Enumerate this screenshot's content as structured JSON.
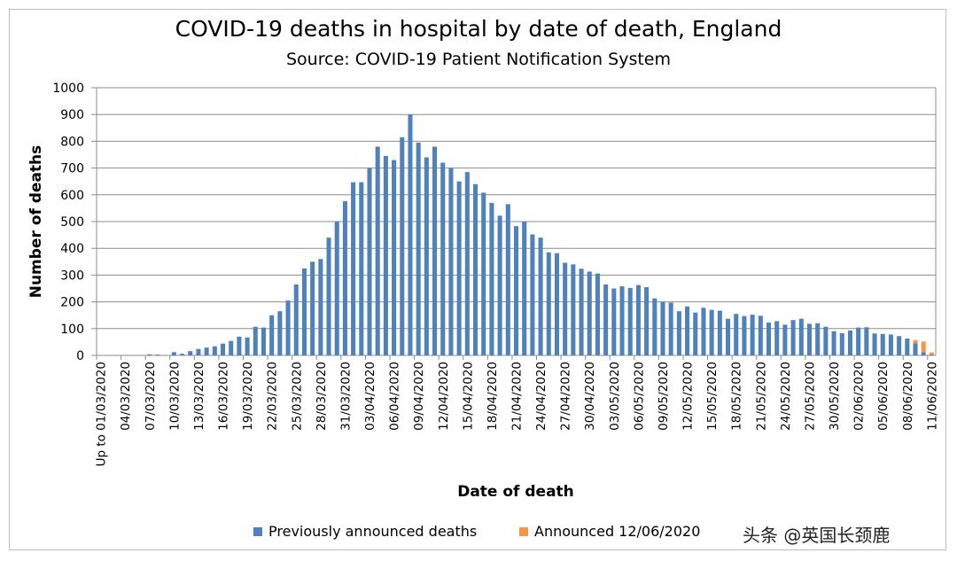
{
  "chart_data": {
    "type": "bar",
    "stacked": true,
    "title": "COVID-19 deaths in hospital by date of death, England",
    "subtitle": "Source: COVID-19 Patient Notification System",
    "xlabel": "Date of death",
    "ylabel": "Number of deaths",
    "ylim": [
      0,
      1000
    ],
    "yticks": [
      0,
      100,
      200,
      300,
      400,
      500,
      600,
      700,
      800,
      900,
      1000
    ],
    "grid": true,
    "legend_position": "bottom",
    "categories": [
      "Up to 01/03/2020",
      "02/03/2020",
      "03/03/2020",
      "04/03/2020",
      "05/03/2020",
      "06/03/2020",
      "07/03/2020",
      "08/03/2020",
      "09/03/2020",
      "10/03/2020",
      "11/03/2020",
      "12/03/2020",
      "13/03/2020",
      "14/03/2020",
      "15/03/2020",
      "16/03/2020",
      "17/03/2020",
      "18/03/2020",
      "19/03/2020",
      "20/03/2020",
      "21/03/2020",
      "22/03/2020",
      "23/03/2020",
      "24/03/2020",
      "25/03/2020",
      "26/03/2020",
      "27/03/2020",
      "28/03/2020",
      "29/03/2020",
      "30/03/2020",
      "31/03/2020",
      "01/04/2020",
      "02/04/2020",
      "03/04/2020",
      "04/04/2020",
      "05/04/2020",
      "06/04/2020",
      "07/04/2020",
      "08/04/2020",
      "09/04/2020",
      "10/04/2020",
      "11/04/2020",
      "12/04/2020",
      "13/04/2020",
      "14/04/2020",
      "15/04/2020",
      "16/04/2020",
      "17/04/2020",
      "18/04/2020",
      "19/04/2020",
      "20/04/2020",
      "21/04/2020",
      "22/04/2020",
      "23/04/2020",
      "24/04/2020",
      "25/04/2020",
      "26/04/2020",
      "27/04/2020",
      "28/04/2020",
      "29/04/2020",
      "30/04/2020",
      "01/05/2020",
      "02/05/2020",
      "03/05/2020",
      "04/05/2020",
      "05/05/2020",
      "06/05/2020",
      "07/05/2020",
      "08/05/2020",
      "09/05/2020",
      "10/05/2020",
      "11/05/2020",
      "12/05/2020",
      "13/05/2020",
      "14/05/2020",
      "15/05/2020",
      "16/05/2020",
      "17/05/2020",
      "18/05/2020",
      "19/05/2020",
      "20/05/2020",
      "21/05/2020",
      "22/05/2020",
      "23/05/2020",
      "24/05/2020",
      "25/05/2020",
      "26/05/2020",
      "27/05/2020",
      "28/05/2020",
      "29/05/2020",
      "30/05/2020",
      "31/05/2020",
      "01/06/2020",
      "02/06/2020",
      "03/06/2020",
      "04/06/2020",
      "05/06/2020",
      "06/06/2020",
      "07/06/2020",
      "08/06/2020",
      "09/06/2020",
      "10/06/2020",
      "11/06/2020"
    ],
    "labeled_ticks": [
      "Up to 01/03/2020",
      "04/03/2020",
      "07/03/2020",
      "10/03/2020",
      "13/03/2020",
      "16/03/2020",
      "19/03/2020",
      "22/03/2020",
      "25/03/2020",
      "28/03/2020",
      "31/03/2020",
      "03/04/2020",
      "06/04/2020",
      "09/04/2020",
      "12/04/2020",
      "15/04/2020",
      "18/04/2020",
      "21/04/2020",
      "24/04/2020",
      "27/04/2020",
      "30/04/2020",
      "03/05/2020",
      "06/05/2020",
      "09/05/2020",
      "12/05/2020",
      "15/05/2020",
      "18/05/2020",
      "21/05/2020",
      "24/05/2020",
      "27/05/2020",
      "30/05/2020",
      "02/06/2020",
      "05/06/2020",
      "08/06/2020",
      "11/06/2020"
    ],
    "series": [
      {
        "name": "Previously announced deaths",
        "color": "#4f81bd",
        "values": [
          0,
          0,
          1,
          1,
          1,
          1,
          4,
          3,
          1,
          12,
          6,
          16,
          24,
          29,
          34,
          44,
          54,
          70,
          67,
          107,
          104,
          150,
          165,
          205,
          265,
          325,
          350,
          360,
          440,
          500,
          576,
          647,
          647,
          700,
          780,
          745,
          730,
          815,
          900,
          795,
          740,
          780,
          720,
          700,
          650,
          685,
          640,
          608,
          570,
          522,
          565,
          483,
          500,
          452,
          440,
          385,
          382,
          346,
          340,
          324,
          313,
          306,
          265,
          250,
          258,
          252,
          263,
          255,
          213,
          200,
          197,
          165,
          183,
          160,
          178,
          170,
          167,
          137,
          155,
          147,
          152,
          148,
          123,
          128,
          115,
          132,
          137,
          118,
          120,
          107,
          90,
          83,
          93,
          104,
          105,
          82,
          80,
          78,
          72,
          63,
          45,
          12,
          3
        ]
      },
      {
        "name": "Announced 12/06/2020",
        "color": "#f79646",
        "values": [
          0,
          0,
          0,
          0,
          0,
          0,
          0,
          0,
          0,
          0,
          0,
          0,
          0,
          0,
          0,
          0,
          0,
          0,
          0,
          0,
          0,
          0,
          0,
          0,
          0,
          0,
          0,
          0,
          0,
          0,
          0,
          0,
          0,
          0,
          0,
          0,
          0,
          0,
          0,
          0,
          0,
          0,
          0,
          0,
          0,
          0,
          0,
          0,
          0,
          0,
          0,
          0,
          0,
          0,
          0,
          0,
          0,
          0,
          0,
          0,
          0,
          0,
          0,
          0,
          0,
          0,
          0,
          0,
          0,
          0,
          0,
          0,
          0,
          0,
          0,
          0,
          0,
          0,
          0,
          0,
          0,
          0,
          0,
          0,
          0,
          0,
          0,
          0,
          0,
          0,
          0,
          0,
          0,
          0,
          0,
          0,
          0,
          0,
          0,
          0,
          12,
          40,
          8
        ]
      }
    ]
  },
  "watermark": "头条 @英国长颈鹿"
}
